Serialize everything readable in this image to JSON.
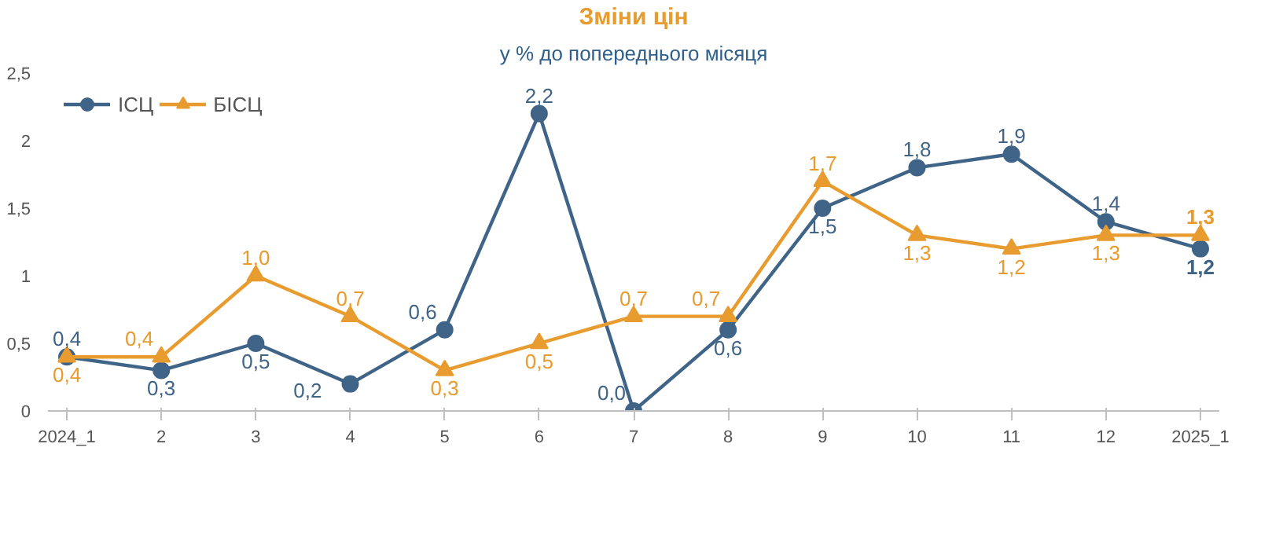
{
  "chart_data": {
    "type": "line",
    "title": "Зміни цін",
    "subtitle": "у % до попереднього місяця",
    "categories": [
      "2024_1",
      "2",
      "3",
      "4",
      "5",
      "6",
      "7",
      "8",
      "9",
      "10",
      "11",
      "12",
      "2025_1"
    ],
    "series": [
      {
        "name": "ІСЦ",
        "color": "#3f6487",
        "values": [
          0.4,
          0.3,
          0.5,
          0.2,
          0.6,
          2.2,
          0.0,
          0.6,
          1.5,
          1.8,
          1.9,
          1.4,
          1.2
        ],
        "marker": "circle",
        "value_labels": [
          "0,4",
          "0,3",
          "0,5",
          "0,2",
          "0,6",
          "2,2",
          "0,0",
          "0,6",
          "1,5",
          "1,8",
          "1,9",
          "1,4",
          "1,2"
        ]
      },
      {
        "name": "БІСЦ",
        "color": "#e89b2f",
        "values": [
          0.4,
          0.4,
          1.0,
          0.7,
          0.3,
          0.5,
          0.7,
          0.7,
          1.7,
          1.3,
          1.2,
          1.3,
          1.3
        ],
        "marker": "triangle",
        "value_labels": [
          "0,4",
          "0,4",
          "1,0",
          "0,7",
          "0,3",
          "0,5",
          "0,7",
          "0,7",
          "1,7",
          "1,3",
          "1,2",
          "1,3",
          "1,3"
        ]
      }
    ],
    "ylim": [
      0,
      2.5
    ],
    "yticks": [
      0,
      {
        "value": 0.5,
        "label": "0,5"
      },
      1,
      {
        "value": 1.5,
        "label": "1,5"
      },
      2,
      {
        "value": 2.5,
        "label": "2,5"
      }
    ],
    "grid": false,
    "legend": "top left",
    "line_style": "solid"
  }
}
